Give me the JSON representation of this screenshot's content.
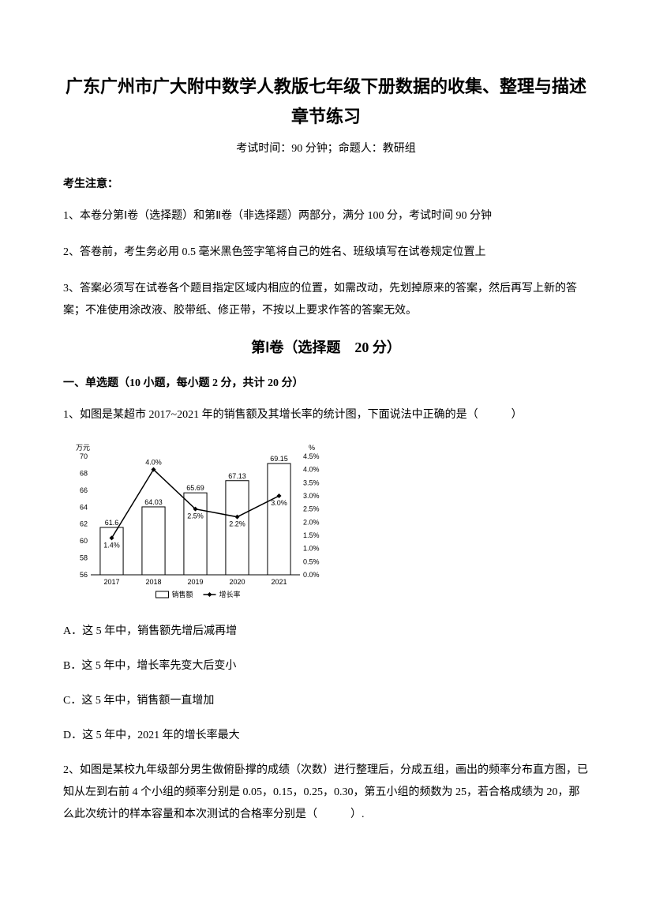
{
  "title_line1": "广东广州市广大附中数学人教版七年级下册数据的收集、整理与描述",
  "title_line2": "章节练习",
  "exam_info": "考试时间：90 分钟；命题人：教研组",
  "notice_heading": "考生注意：",
  "notice_items": [
    "1、本卷分第Ⅰ卷（选择题）和第Ⅱ卷（非选择题）两部分，满分 100 分，考试时间 90 分钟",
    "2、答卷前，考生务必用 0.5 毫米黑色签字笔将自己的姓名、班级填写在试卷规定位置上",
    "3、答案必须写在试卷各个题目指定区域内相应的位置，如需改动，先划掉原来的答案，然后再写上新的答案；不准使用涂改液、胶带纸、修正带，不按以上要求作答的答案无效。"
  ],
  "section_heading": "第Ⅰ卷（选择题　20 分）",
  "subsection_heading": "一、单选题（10 小题，每小题 2 分，共计 20 分）",
  "q1_text": "1、如图是某超市 2017~2021 年的销售额及其增长率的统计图，下面说法中正确的是（　　　）",
  "q1_options": [
    "A．这 5 年中，销售额先增后减再增",
    "B．这 5 年中，增长率先变大后变小",
    "C．这 5 年中，销售额一直增加",
    "D．这 5 年中，2021 年的增长率最大"
  ],
  "q2_text": "2、如图是某校九年级部分男生做俯卧撑的成绩（次数）进行整理后，分成五组，画出的频率分布直方图，已知从左到右前 4 个小组的频率分别是 0.05，0.15，0.25，0.30，第五小组的频数为 25，若合格成绩为 20，那么此次统计的样本容量和本次测试的合格率分别是（　　　）.",
  "chart": {
    "type": "combo_bar_line",
    "y1_label": "万元",
    "y2_label": "%",
    "categories": [
      "2017",
      "2018",
      "2019",
      "2020",
      "2021"
    ],
    "bar_values": [
      61.6,
      64.03,
      65.69,
      67.13,
      69.15
    ],
    "bar_labels": [
      "61.6",
      "64.03",
      "65.69",
      "67.13",
      "69.15"
    ],
    "line_values": [
      1.4,
      4.0,
      2.5,
      2.2,
      3.0
    ],
    "line_labels": [
      "1.4%",
      "4.0%",
      "2.5%",
      "2.2%",
      "3.0%"
    ],
    "y1_ticks": [
      56,
      58,
      60,
      62,
      64,
      66,
      68,
      70
    ],
    "y2_ticks": [
      "0.0%",
      "0.5%",
      "1.0%",
      "1.5%",
      "2.0%",
      "2.5%",
      "3.0%",
      "3.5%",
      "4.0%",
      "4.5%"
    ],
    "y1_range": [
      56,
      70
    ],
    "y2_range": [
      0,
      4.5
    ],
    "legend_bar": "销售额",
    "legend_line": "增长率",
    "bar_color": "#ffffff",
    "bar_stroke": "#000000",
    "line_color": "#000000",
    "marker_style": "diamond",
    "background_color": "#ffffff",
    "font_size": 9
  }
}
